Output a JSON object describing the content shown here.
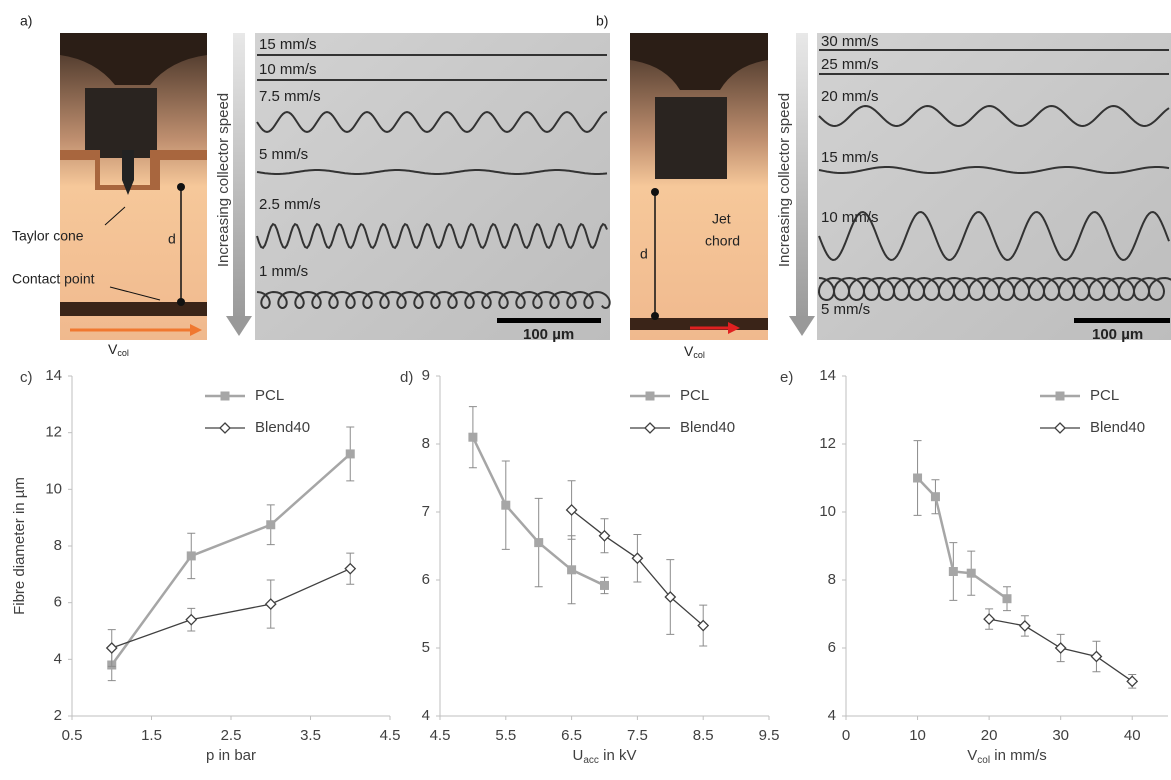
{
  "panel_a": {
    "label": "a)",
    "taylor_cone": "Taylor cone",
    "contact_point": "Contact point",
    "d": "d",
    "vcol": {
      "main": "V",
      "sub": "col"
    },
    "speed_axis": "Increasing collector speed",
    "speeds": [
      "15 mm/s",
      "10 mm/s",
      "7.5 mm/s",
      "5 mm/s",
      "2.5 mm/s",
      "1 mm/s"
    ],
    "scale_bar": "100 µm"
  },
  "panel_b": {
    "label": "b)",
    "jet_chord": [
      "Jet",
      "chord"
    ],
    "d": "d",
    "vcol": {
      "main": "V",
      "sub": "col"
    },
    "speed_axis": "Increasing collector speed",
    "speeds": [
      "30 mm/s",
      "25 mm/s",
      "20 mm/s",
      "15 mm/s",
      "10 mm/s",
      "5 mm/s"
    ],
    "scale_bar": "100 µm"
  },
  "chart_data": [
    {
      "type": "line",
      "panel_label": "c)",
      "ylabel": "Fibre diameter in µm",
      "xlabel": "p in bar",
      "xlim": [
        0.5,
        4.5
      ],
      "xticks": [
        0.5,
        1.5,
        2.5,
        3.5,
        4.5
      ],
      "ylim": [
        2,
        14
      ],
      "yticks": [
        2,
        4,
        6,
        8,
        10,
        12,
        14
      ],
      "legend": "upper right",
      "series": [
        {
          "name": "PCL",
          "color": "#a6a6a6",
          "marker": "square",
          "x": [
            1,
            2,
            3,
            4
          ],
          "values": [
            3.8,
            7.65,
            8.75,
            11.25
          ],
          "errors": [
            0.55,
            0.8,
            0.7,
            0.95
          ]
        },
        {
          "name": "Blend40",
          "color": "#404040",
          "marker": "diamond",
          "x": [
            1,
            2,
            3,
            4
          ],
          "values": [
            4.4,
            5.4,
            5.95,
            7.2
          ],
          "errors": [
            0.65,
            0.4,
            0.85,
            0.55
          ]
        }
      ]
    },
    {
      "type": "line",
      "panel_label": "d)",
      "xlabel": {
        "main": "U",
        "sub": "acc",
        "rest": " in kV"
      },
      "xlim": [
        4.5,
        9.5
      ],
      "xticks": [
        4.5,
        5.5,
        6.5,
        7.5,
        8.5,
        9.5
      ],
      "ylim": [
        4,
        9
      ],
      "yticks": [
        4,
        5,
        6,
        7,
        8,
        9
      ],
      "legend": "upper right",
      "series": [
        {
          "name": "PCL",
          "color": "#a6a6a6",
          "marker": "square",
          "x": [
            5,
            5.5,
            6,
            6.5,
            7
          ],
          "values": [
            8.1,
            7.1,
            6.55,
            6.15,
            5.92
          ],
          "errors": [
            0.45,
            0.65,
            0.65,
            0.5,
            0.12
          ]
        },
        {
          "name": "Blend40",
          "color": "#404040",
          "marker": "diamond",
          "x": [
            6.5,
            7,
            7.5,
            8,
            8.5
          ],
          "values": [
            7.03,
            6.65,
            6.32,
            5.75,
            5.33
          ],
          "errors": [
            0.43,
            0.25,
            0.35,
            0.55,
            0.3
          ]
        }
      ]
    },
    {
      "type": "line",
      "panel_label": "e)",
      "xlabel": {
        "main": "V",
        "sub": "col",
        "rest": " in mm/s"
      },
      "xlim": [
        0,
        45
      ],
      "xticks": [
        0,
        10,
        20,
        30,
        40
      ],
      "ylim": [
        4,
        14
      ],
      "yticks": [
        4,
        6,
        8,
        10,
        12,
        14
      ],
      "legend": "upper right",
      "series": [
        {
          "name": "PCL",
          "color": "#a6a6a6",
          "marker": "square",
          "x": [
            10,
            12.5,
            15,
            17.5,
            22.5
          ],
          "values": [
            11.0,
            10.45,
            8.25,
            8.2,
            7.45
          ],
          "errors": [
            1.1,
            0.5,
            0.85,
            0.65,
            0.35
          ]
        },
        {
          "name": "Blend40",
          "color": "#404040",
          "marker": "diamond",
          "x": [
            20,
            25,
            30,
            35,
            40
          ],
          "values": [
            6.85,
            6.65,
            6.0,
            5.75,
            5.02
          ],
          "errors": [
            0.3,
            0.3,
            0.4,
            0.45,
            0.2
          ]
        }
      ]
    }
  ]
}
